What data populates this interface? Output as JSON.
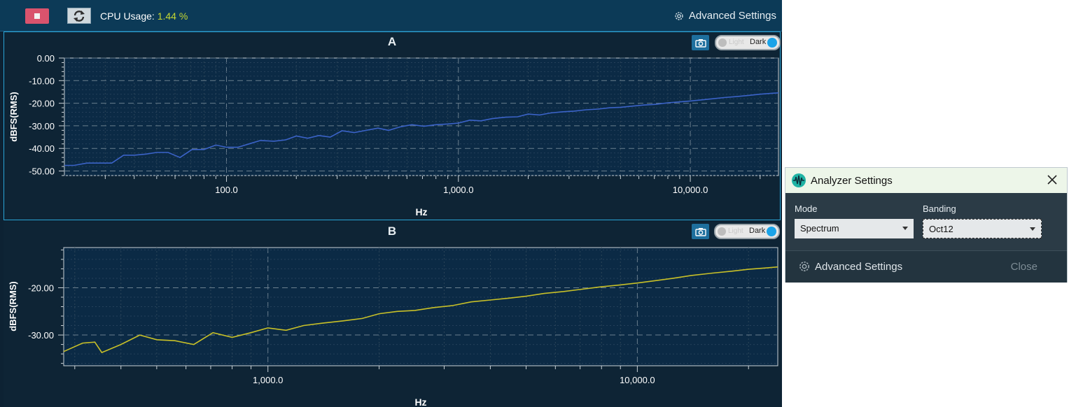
{
  "toolbar": {
    "cpu_label": "CPU Usage:",
    "cpu_value": "1.44",
    "cpu_unit": "%",
    "advanced_settings_label": "Advanced Settings",
    "stop_color": "#d9536d",
    "accent_color": "#c6d832"
  },
  "panel_a": {
    "title": "A",
    "toggle_light": "Light",
    "toggle_dark": "Dark",
    "icon": "camera-icon"
  },
  "panel_b": {
    "title": "B",
    "toggle_light": "Light",
    "toggle_dark": "Dark",
    "icon": "camera-icon"
  },
  "chart_data": [
    {
      "type": "line",
      "title": "A",
      "xlabel": "Hz",
      "ylabel": "dBFS(RMS)",
      "x_scale": "log",
      "xlim": [
        20,
        24000
      ],
      "ylim": [
        -52,
        0
      ],
      "yticks": [
        "0.00",
        "-10.00",
        "-20.00",
        "-30.00",
        "-40.00",
        "-50.00"
      ],
      "xticks": [
        "100.0",
        "1,000.0",
        "10,000.0"
      ],
      "grid": true,
      "series": [
        {
          "color": "#3b63c8",
          "x": [
            20,
            22,
            25,
            28,
            32,
            36,
            40,
            45,
            50,
            56,
            63,
            71,
            80,
            90,
            100,
            112,
            125,
            140,
            160,
            180,
            200,
            224,
            250,
            280,
            315,
            355,
            400,
            450,
            500,
            560,
            630,
            710,
            800,
            900,
            1000,
            1120,
            1250,
            1400,
            1600,
            1800,
            2000,
            2240,
            2500,
            2800,
            3150,
            3550,
            4000,
            4500,
            5000,
            5600,
            6300,
            7100,
            8000,
            9000,
            10000,
            11200,
            12500,
            14000,
            16000,
            18000,
            20000,
            22400,
            24000
          ],
          "y": [
            -47.5,
            -47.5,
            -46.5,
            -46.5,
            -46.5,
            -43.0,
            -43.0,
            -42.5,
            -41.8,
            -41.8,
            -44.0,
            -40.5,
            -40.5,
            -38.5,
            -39.5,
            -39.5,
            -38.0,
            -36.5,
            -36.8,
            -36.2,
            -34.5,
            -35.5,
            -34.3,
            -35.0,
            -32.2,
            -33.0,
            -32.0,
            -31.0,
            -32.0,
            -30.5,
            -29.5,
            -30.2,
            -29.5,
            -29.2,
            -28.8,
            -27.5,
            -27.8,
            -26.8,
            -26.2,
            -26.0,
            -24.8,
            -25.2,
            -24.3,
            -23.8,
            -23.5,
            -22.9,
            -22.6,
            -22.0,
            -21.8,
            -21.3,
            -20.8,
            -20.5,
            -19.8,
            -19.4,
            -19.0,
            -18.5,
            -18.0,
            -17.5,
            -17.0,
            -16.5,
            -16.0,
            -15.6,
            -15.4
          ]
        }
      ]
    },
    {
      "type": "line",
      "title": "B",
      "xlabel": "Hz",
      "ylabel": "dBFS(RMS)",
      "x_scale": "log",
      "xlim": [
        280,
        24000
      ],
      "ylim": [
        -36.5,
        -11.5
      ],
      "yticks": [
        "-20.00",
        "-30.00"
      ],
      "xticks": [
        "1,000.0",
        "10,000.0"
      ],
      "grid": true,
      "series": [
        {
          "color": "#c8c028",
          "x": [
            280,
            315,
            340,
            355,
            400,
            450,
            500,
            560,
            630,
            710,
            800,
            900,
            1000,
            1120,
            1250,
            1400,
            1600,
            1800,
            2000,
            2240,
            2500,
            2800,
            3150,
            3550,
            4000,
            4500,
            5000,
            5600,
            6300,
            7100,
            8000,
            9000,
            10000,
            11200,
            12500,
            14000,
            16000,
            18000,
            20000,
            22400,
            24000
          ],
          "y": [
            -33.5,
            -31.7,
            -31.5,
            -33.7,
            -32.0,
            -30.0,
            -31.0,
            -31.2,
            -32.0,
            -29.5,
            -30.5,
            -29.5,
            -28.5,
            -29.0,
            -28.0,
            -27.5,
            -27.0,
            -26.5,
            -25.5,
            -25.0,
            -24.8,
            -24.2,
            -23.8,
            -23.0,
            -22.6,
            -22.2,
            -21.8,
            -21.2,
            -20.8,
            -20.3,
            -19.8,
            -19.4,
            -19.0,
            -18.5,
            -18.0,
            -17.4,
            -16.9,
            -16.5,
            -16.1,
            -15.8,
            -15.6
          ]
        }
      ]
    }
  ],
  "dialog": {
    "title": "Analyzer Settings",
    "mode_label": "Mode",
    "mode_value": "Spectrum",
    "banding_label": "Banding",
    "banding_value": "Oct12",
    "advanced_settings_label": "Advanced Settings",
    "close_label": "Close",
    "header_color": "#edf6e9"
  }
}
